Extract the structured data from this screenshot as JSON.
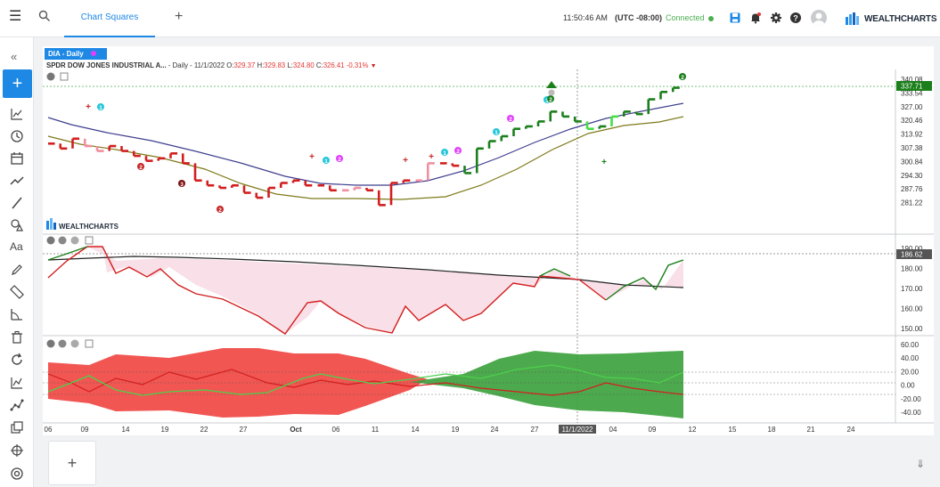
{
  "header": {
    "tab_label": "Chart Squares",
    "time": "11:50:46 AM",
    "timezone": "(UTC -08:00)",
    "connection": "Connected",
    "logo": "WEALTHCHARTS",
    "icons": [
      "menu-icon",
      "search-icon",
      "add-tab-icon",
      "save-icon",
      "alerts-icon",
      "settings-icon",
      "help-icon",
      "user-avatar-icon"
    ]
  },
  "sidebar": {
    "tools": [
      "collapse-icon",
      "add-icon",
      "indicator-icon",
      "clock-icon",
      "calendar-icon",
      "trend-icon",
      "line-tool-icon",
      "shapes-icon",
      "text-tool-icon",
      "pencil-icon",
      "ruler-icon",
      "angle-icon",
      "trash-icon",
      "refresh-icon",
      "chart-icon",
      "scatter-icon",
      "layers-icon",
      "crosshair-icon",
      "settings-gear-icon"
    ]
  },
  "symbol": {
    "tab": "DIA - Daily",
    "name": "SPDR DOW JONES INDUSTRIAL A...",
    "period": "- Daily - 11/1/2022",
    "o_label": "O:",
    "o": "329.37",
    "h_label": "H:",
    "h": "329.83",
    "l_label": "L:",
    "l": "324.80",
    "c_label": "C:",
    "c": "326.41",
    "chg": "-0.31%"
  },
  "watermark": "WEALTHCHARTS",
  "price_axis": [
    "340.08",
    "333.54",
    "327.00",
    "320.46",
    "313.92",
    "307.38",
    "300.84",
    "294.30",
    "287.76",
    "281.22"
  ],
  "price_last": "337.71",
  "osc1_axis": [
    "190.00",
    "180.00",
    "170.00",
    "160.00",
    "150.00"
  ],
  "osc1_last": "186.62",
  "osc2_axis": [
    "60.00",
    "40.00",
    "20.00",
    "0.00",
    "-20.00",
    "-40.00"
  ],
  "date_axis": [
    "06",
    "09",
    "14",
    "19",
    "22",
    "27",
    "Oct",
    "06",
    "11",
    "14",
    "19",
    "24",
    "27",
    "11/1/2022",
    "04",
    "09",
    "12",
    "15",
    "18",
    "21",
    "24"
  ],
  "colors": {
    "accent": "#1e88e5",
    "up": "#1b7f1b",
    "down": "#d21f1f",
    "pink": "#f08fa0",
    "ma_fast": "#3f3f8f",
    "ma_slow": "#7d7a1a"
  },
  "chart_data": {
    "type": "line",
    "title": "SPDR DOW JONES INDUSTRIAL A... - Daily - 11/1/2022",
    "ylim_price": [
      281.22,
      340.08
    ],
    "last_price": 337.71,
    "series": [
      {
        "values": [
          315,
          313,
          317,
          314,
          312,
          314,
          312,
          310,
          308,
          309,
          311,
          307,
          300,
          298,
          297,
          298,
          295,
          293,
          297,
          299,
          300,
          298,
          298,
          296,
          296,
          297,
          296,
          290,
          299,
          300,
          300,
          307,
          307,
          306,
          303,
          313,
          316,
          318,
          321,
          322,
          324,
          328,
          326,
          324,
          321,
          322,
          326,
          328,
          327,
          333,
          336,
          337.71
        ]
      }
    ]
  }
}
